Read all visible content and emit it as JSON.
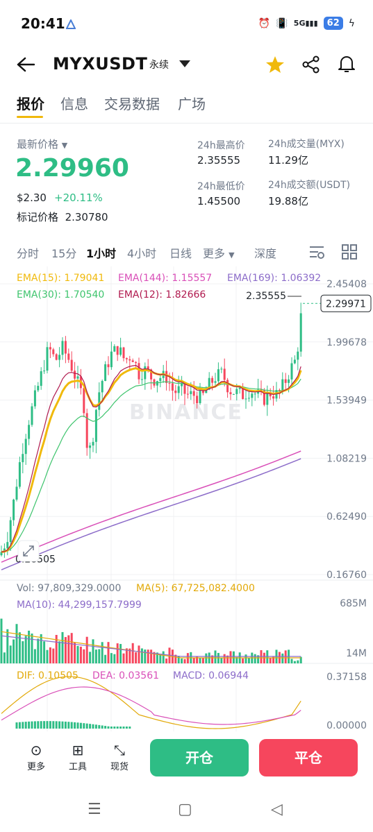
{
  "status": {
    "time": "20:41",
    "battery": "62",
    "signal": "5G"
  },
  "header": {
    "title": "MYXUSDT",
    "perp": "永续"
  },
  "tabs": [
    "报价",
    "信息",
    "交易数据",
    "广场"
  ],
  "price": {
    "label": "最新价格",
    "last": "2.29960",
    "usd": "$2.30",
    "change": "+20.11%",
    "mark_label": "标记价格",
    "mark": "2.30780"
  },
  "stats": {
    "high_label": "24h最高价",
    "high": "2.35555",
    "low_label": "24h最低价",
    "low": "1.45500",
    "vol_label": "24h成交量(MYX)",
    "vol": "11.29亿",
    "amt_label": "24h成交额(USDT)",
    "amt": "19.88亿"
  },
  "timeframes": [
    "分时",
    "15分",
    "1小时",
    "4小时",
    "日线",
    "更多"
  ],
  "depth": "深度",
  "indicators": {
    "ema15": "EMA(15): 1.79041",
    "ema144": "EMA(144): 1.15557",
    "ema169": "EMA(169): 1.06392",
    "ema30": "EMA(30): 1.70540",
    "ema12": "EMA(12): 1.82666",
    "vol": "Vol: 97,809,329.0000",
    "ma5": "MA(5): 67,725,082.4000",
    "ma10": "MA(10): 44,299,157.7999",
    "dif": "DIF: 0.10505",
    "dea": "DEA: 0.03561",
    "macd": "MACD: 0.06944"
  },
  "axis": {
    "price_ticks": [
      "2.45408",
      "1.99678",
      "1.53949",
      "1.08219",
      "0.62490",
      "0.16760"
    ],
    "vol_ticks": [
      "685M",
      "14M"
    ],
    "macd_ticks": [
      "0.37158",
      "0.00000"
    ],
    "high_mark": "2.35555",
    "low_mark": "0.28505",
    "current_tag": "2.29971"
  },
  "watermark": "BINANCE",
  "bottom": {
    "more": "更多",
    "tools": "工具",
    "spot": "现货",
    "open": "开仓",
    "close": "平仓"
  },
  "colors": {
    "up": "#2ebd85",
    "down": "#f6465d",
    "accent": "#f0b90b"
  },
  "chart_data": {
    "type": "candlestick",
    "timeframe": "1小时",
    "ylim": [
      0.1676,
      2.45408
    ],
    "last": 2.29971,
    "high": 2.35555,
    "low": 0.28505
  }
}
